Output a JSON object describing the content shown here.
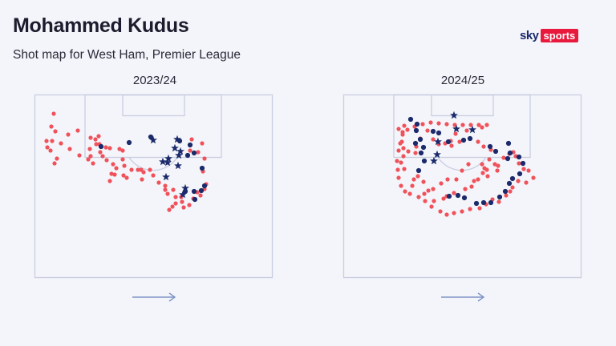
{
  "header": {
    "title": "Mohammed Kudus",
    "subtitle": "Shot map for West Ham, Premier League"
  },
  "logo": {
    "sky": "sky",
    "sports": "sports"
  },
  "colors": {
    "non_goal": "#f0525b",
    "goal_dot": "#1b2a6b",
    "goal_star": "#1b2a6b",
    "pitch_line": "#c8cde0",
    "arrow": "#7e94c6"
  },
  "chart_data": [
    {
      "type": "scatter",
      "title": "2023/24",
      "direction_icon": "arrow-right-icon",
      "series": [
        {
          "marker": "dot",
          "color": "#f0525b",
          "points": [
            [
              26,
              26
            ],
            [
              23,
              42
            ],
            [
              28,
              48
            ],
            [
              24,
              60
            ],
            [
              17,
              60
            ],
            [
              18,
              68
            ],
            [
              22,
              72
            ],
            [
              30,
              82
            ],
            [
              27,
              88
            ],
            [
              35,
              63
            ],
            [
              56,
              47
            ],
            [
              44,
              52
            ],
            [
              46,
              70
            ],
            [
              58,
              78
            ],
            [
              72,
              56
            ],
            [
              71,
              70
            ],
            [
              72,
              79
            ],
            [
              69,
              83
            ],
            [
              75,
              88
            ],
            [
              78,
              58
            ],
            [
              82,
              54
            ],
            [
              83,
              64
            ],
            [
              79,
              64
            ],
            [
              84,
              74
            ],
            [
              87,
              79
            ],
            [
              91,
              68
            ],
            [
              96,
              69
            ],
            [
              92,
              84
            ],
            [
              100,
              89
            ],
            [
              98,
              101
            ],
            [
              96,
              110
            ],
            [
              102,
              102
            ],
            [
              104,
              94
            ],
            [
              108,
              70
            ],
            [
              112,
              72
            ],
            [
              112,
              83
            ],
            [
              114,
              91
            ],
            [
              113,
              103
            ],
            [
              117,
              106
            ],
            [
              123,
              96
            ],
            [
              131,
              96
            ],
            [
              135,
              96
            ],
            [
              138,
              99
            ],
            [
              146,
              96
            ],
            [
              136,
              108
            ],
            [
              150,
              103
            ],
            [
              157,
              112
            ],
            [
              165,
              116
            ],
            [
              165,
              121
            ],
            [
              168,
              126
            ],
            [
              175,
              121
            ],
            [
              178,
              130
            ],
            [
              185,
              130
            ],
            [
              186,
              136
            ],
            [
              178,
              138
            ],
            [
              174,
              142
            ],
            [
              170,
              146
            ],
            [
              188,
              143
            ],
            [
              195,
              140
            ],
            [
              200,
              132
            ],
            [
              205,
              124
            ],
            [
              209,
              128
            ],
            [
              214,
              120
            ],
            [
              216,
              114
            ],
            [
              212,
              98
            ],
            [
              214,
              82
            ],
            [
              206,
              74
            ],
            [
              211,
              63
            ],
            [
              198,
              58
            ],
            [
              196,
              72
            ]
          ]
        },
        {
          "marker": "dot",
          "color": "#1b2a6b",
          "points": [
            [
              85,
              67
            ],
            [
              147,
              55
            ],
            [
              120,
              62
            ],
            [
              196,
              65
            ],
            [
              183,
              60
            ],
            [
              201,
              75
            ],
            [
              193,
              78
            ],
            [
              211,
              94
            ],
            [
              214,
              116
            ],
            [
              210,
              122
            ],
            [
              201,
              123
            ],
            [
              190,
              123
            ],
            [
              202,
              133
            ]
          ]
        },
        {
          "marker": "star",
          "color": "#1b2a6b",
          "points": [
            [
              150,
              59
            ],
            [
              180,
              58
            ],
            [
              177,
              69
            ],
            [
              184,
              73
            ],
            [
              182,
              78
            ],
            [
              169,
              82
            ],
            [
              162,
              86
            ],
            [
              181,
              91
            ],
            [
              190,
              119
            ],
            [
              168,
              87
            ],
            [
              166,
              105
            ],
            [
              187,
              127
            ]
          ]
        }
      ]
    },
    {
      "type": "scatter",
      "title": "2024/25",
      "direction_icon": "arrow-right-icon",
      "series": [
        {
          "marker": "dot",
          "color": "#f0525b",
          "points": [
            [
              78,
              41
            ],
            [
              71,
              45
            ],
            [
              76,
              49
            ],
            [
              75,
              61
            ],
            [
              77,
              69
            ],
            [
              83,
              73
            ],
            [
              92,
              75
            ],
            [
              93,
              67
            ],
            [
              98,
              57
            ],
            [
              107,
              47
            ],
            [
              114,
              58
            ],
            [
              121,
              64
            ],
            [
              129,
              63
            ],
            [
              136,
              60
            ],
            [
              137,
              66
            ],
            [
              147,
              61
            ],
            [
              142,
              51
            ],
            [
              156,
              47
            ],
            [
              175,
              43
            ],
            [
              170,
              61
            ],
            [
              177,
              67
            ],
            [
              186,
              71
            ],
            [
              175,
              89
            ],
            [
              181,
              96
            ],
            [
              182,
              104
            ],
            [
              194,
              97
            ],
            [
              191,
              89
            ],
            [
              184,
              83
            ],
            [
              158,
              89
            ],
            [
              150,
              97
            ],
            [
              143,
              108
            ],
            [
              132,
              108
            ],
            [
              124,
              113
            ],
            [
              114,
              120
            ],
            [
              108,
              122
            ],
            [
              102,
              111
            ],
            [
              95,
              104
            ],
            [
              90,
              108
            ],
            [
              78,
              95
            ],
            [
              74,
              87
            ],
            [
              77,
              79
            ],
            [
              88,
              116
            ],
            [
              103,
              126
            ],
            [
              115,
              135
            ],
            [
              127,
              132
            ],
            [
              131,
              129
            ],
            [
              140,
              125
            ],
            [
              154,
              120
            ],
            [
              162,
              117
            ],
            [
              165,
              110
            ],
            [
              170,
              108
            ],
            [
              176,
              100
            ],
            [
              178,
              94
            ],
            [
              195,
              91
            ],
            [
              202,
              81
            ],
            [
              209,
              76
            ],
            [
              214,
              74
            ],
            [
              217,
              79
            ],
            [
              221,
              88
            ],
            [
              227,
              95
            ],
            [
              233,
              97
            ],
            [
              239,
              106
            ],
            [
              230,
              112
            ],
            [
              220,
              110
            ],
            [
              213,
              118
            ],
            [
              210,
              123
            ],
            [
              205,
              128
            ],
            [
              196,
              136
            ],
            [
              188,
              133
            ],
            [
              180,
              139
            ],
            [
              172,
              144
            ],
            [
              160,
              145
            ],
            [
              150,
              148
            ],
            [
              140,
              150
            ],
            [
              131,
              152
            ],
            [
              123,
              148
            ],
            [
              112,
              142
            ],
            [
              104,
              135
            ],
            [
              96,
              130
            ],
            [
              85,
              126
            ],
            [
              79,
              123
            ],
            [
              74,
              116
            ],
            [
              71,
              106
            ],
            [
              70,
              96
            ],
            [
              69,
              85
            ],
            [
              71,
              72
            ],
            [
              73,
              63
            ],
            [
              76,
              52
            ],
            [
              82,
              46
            ],
            [
              91,
              42
            ],
            [
              101,
              39
            ],
            [
              111,
              37
            ],
            [
              121,
              38
            ],
            [
              131,
              39
            ],
            [
              141,
              40
            ],
            [
              151,
              40
            ],
            [
              161,
              40
            ],
            [
              171,
              40
            ],
            [
              181,
              40
            ]
          ]
        },
        {
          "marker": "dot",
          "color": "#1b2a6b",
          "points": [
            [
              86,
              33
            ],
            [
              94,
              39
            ],
            [
              93,
              47
            ],
            [
              98,
              58
            ],
            [
              92,
              63
            ],
            [
              102,
              68
            ],
            [
              99,
              75
            ],
            [
              103,
              85
            ],
            [
              96,
              97
            ],
            [
              114,
              48
            ],
            [
              121,
              50
            ],
            [
              133,
              61
            ],
            [
              152,
              59
            ],
            [
              160,
              57
            ],
            [
              185,
              67
            ],
            [
              192,
              73
            ],
            [
              208,
              63
            ],
            [
              210,
              75
            ],
            [
              207,
              82
            ],
            [
              221,
              80
            ],
            [
              226,
              88
            ],
            [
              222,
              101
            ],
            [
              213,
              107
            ],
            [
              209,
              113
            ],
            [
              204,
              123
            ],
            [
              197,
              130
            ],
            [
              186,
              137
            ],
            [
              177,
              137
            ],
            [
              168,
              138
            ],
            [
              153,
              131
            ],
            [
              145,
              128
            ],
            [
              134,
              129
            ]
          ]
        },
        {
          "marker": "star",
          "color": "#1b2a6b",
          "points": [
            [
              140,
              28
            ],
            [
              143,
              45
            ],
            [
              163,
              46
            ],
            [
              120,
              61
            ],
            [
              119,
              77
            ],
            [
              115,
              85
            ]
          ]
        }
      ]
    }
  ]
}
